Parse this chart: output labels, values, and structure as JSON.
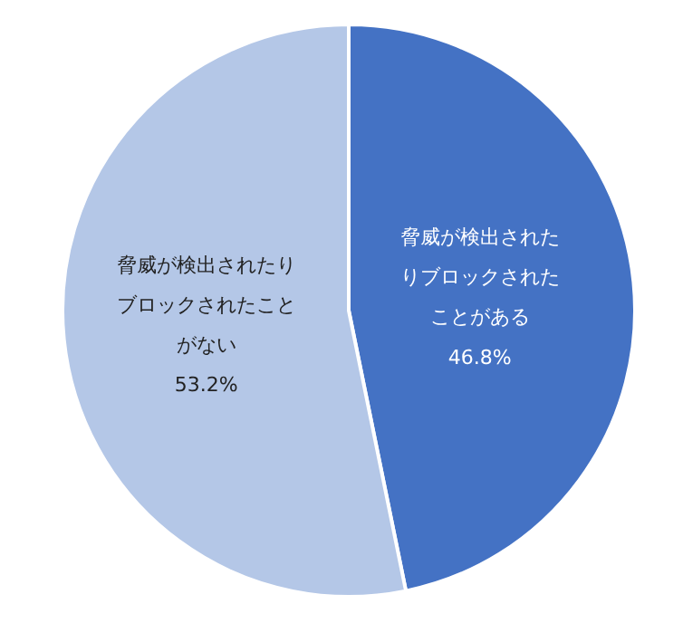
{
  "chart_data": {
    "type": "pie",
    "categories": [
      "脅威が検出されたりブロックされたことがある",
      "脅威が検出されたりブロックされたことがない"
    ],
    "values": [
      46.8,
      53.2
    ],
    "colors": [
      "#4472c4",
      "#b4c7e7"
    ],
    "value_labels": [
      "46.8%",
      "53.2%"
    ]
  }
}
